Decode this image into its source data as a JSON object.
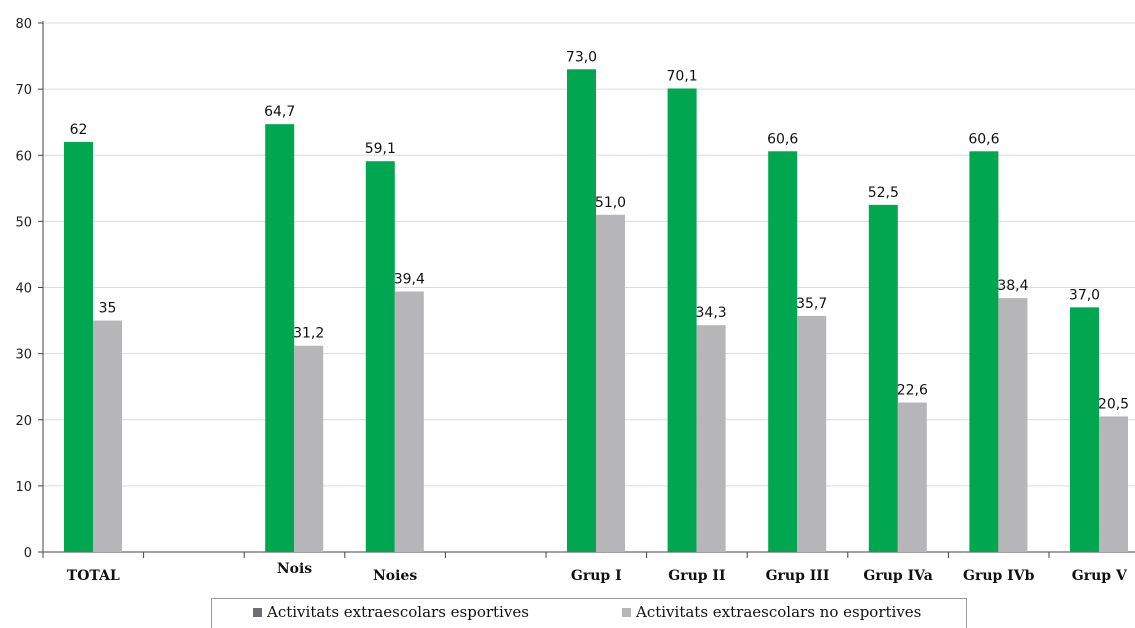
{
  "chart_data": {
    "type": "bar",
    "categories": [
      "TOTAL",
      "",
      "Nois",
      "Noies",
      "",
      "Grup I",
      "Grup II",
      "Grup III",
      "Grup IVa",
      "Grup IVb",
      "Grup V"
    ],
    "series": [
      {
        "name": "Activitats extraescolars esportives",
        "color": "#00a650",
        "legend_color": "#6d6e71",
        "values": [
          62,
          null,
          64.7,
          59.1,
          null,
          73.0,
          70.1,
          60.6,
          52.5,
          60.6,
          37.0
        ],
        "labels": [
          "62",
          "",
          "64,7",
          "59,1",
          "",
          "73,0",
          "70,1",
          "60,6",
          "52,5",
          "60,6",
          "37,0"
        ]
      },
      {
        "name": "Activitats extraescolars no esportives",
        "color": "#b6b6b9",
        "legend_color": "#b6b6b9",
        "values": [
          35,
          null,
          31.2,
          39.4,
          null,
          51.0,
          34.3,
          35.7,
          22.6,
          38.4,
          20.5
        ],
        "labels": [
          "35",
          "",
          "31,2",
          "39,4",
          "",
          "51,0",
          "34,3",
          "35,7",
          "22,6",
          "38,4",
          "20,5"
        ]
      }
    ],
    "yticks": [
      "0",
      "10",
      "20",
      "30",
      "40",
      "50",
      "60",
      "70",
      "80"
    ],
    "ylim": [
      0,
      80
    ],
    "grid": true,
    "legend_position": "bottom"
  }
}
